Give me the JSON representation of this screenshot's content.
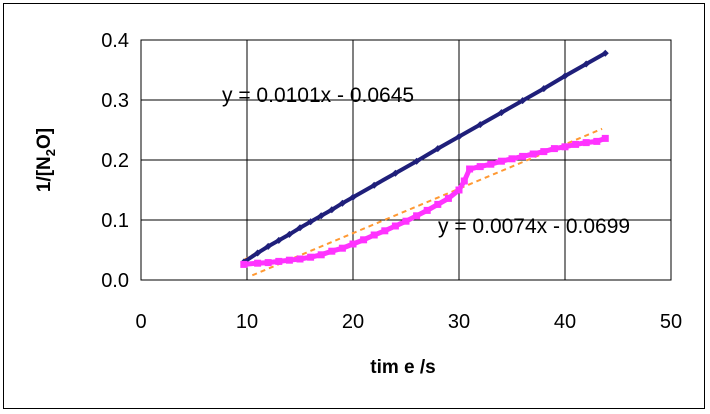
{
  "chart_data": {
    "type": "scatter",
    "xlabel": "tim e /s",
    "ylabel_prefix": "1/[N",
    "ylabel_sub": "2",
    "ylabel_suffix": "O]",
    "xlim": [
      0,
      50
    ],
    "ylim": [
      0.0,
      0.4
    ],
    "x_ticks": [
      "0",
      "10",
      "20",
      "30",
      "40",
      "50"
    ],
    "y_ticks": [
      "0.0",
      "0.1",
      "0.2",
      "0.3",
      "0.4"
    ],
    "grid": true,
    "legend": "none",
    "colors": {
      "series_1": "#1f1f7a",
      "series_2": "#ff33ff",
      "trendline": "#ff9933",
      "grid": "#000000"
    },
    "series": [
      {
        "values": [
          [
            9.7,
            0.03
          ],
          [
            11,
            0.045
          ],
          [
            12,
            0.056
          ],
          [
            13,
            0.066
          ],
          [
            14,
            0.076
          ],
          [
            15,
            0.087
          ],
          [
            16,
            0.097
          ],
          [
            17,
            0.107
          ],
          [
            18,
            0.117
          ],
          [
            19,
            0.128
          ],
          [
            20,
            0.138
          ],
          [
            22,
            0.158
          ],
          [
            24,
            0.178
          ],
          [
            26,
            0.198
          ],
          [
            28,
            0.219
          ],
          [
            30,
            0.239
          ],
          [
            32,
            0.259
          ],
          [
            34,
            0.279
          ],
          [
            36,
            0.299
          ],
          [
            38,
            0.319
          ],
          [
            40,
            0.34
          ],
          [
            42,
            0.36
          ],
          [
            43.8,
            0.378
          ]
        ]
      },
      {
        "values": [
          [
            9.7,
            0.026
          ],
          [
            11,
            0.028
          ],
          [
            12,
            0.029
          ],
          [
            13,
            0.031
          ],
          [
            14,
            0.033
          ],
          [
            15,
            0.035
          ],
          [
            16,
            0.038
          ],
          [
            17,
            0.042
          ],
          [
            18,
            0.048
          ],
          [
            19,
            0.053
          ],
          [
            20,
            0.06
          ],
          [
            21,
            0.067
          ],
          [
            22,
            0.075
          ],
          [
            23,
            0.082
          ],
          [
            24,
            0.09
          ],
          [
            25,
            0.098
          ],
          [
            26,
            0.107
          ],
          [
            27,
            0.116
          ],
          [
            28,
            0.126
          ],
          [
            29,
            0.136
          ],
          [
            30,
            0.15
          ],
          [
            30.5,
            0.165
          ],
          [
            31,
            0.185
          ],
          [
            32,
            0.189
          ],
          [
            33,
            0.193
          ],
          [
            34,
            0.198
          ],
          [
            35,
            0.202
          ],
          [
            36,
            0.206
          ],
          [
            37,
            0.21
          ],
          [
            38,
            0.214
          ],
          [
            39,
            0.219
          ],
          [
            40,
            0.222
          ],
          [
            41,
            0.226
          ],
          [
            42,
            0.229
          ],
          [
            43,
            0.231
          ],
          [
            43.8,
            0.236
          ]
        ]
      }
    ],
    "trendlines": [
      {
        "slope": 0.0101,
        "intercept": -0.0645,
        "x_range": [
          9.7,
          43.8
        ],
        "equation": "y = 0.0101x - 0.0645"
      },
      {
        "slope": 0.0074,
        "intercept": -0.0699,
        "x_range": [
          10.5,
          43.5
        ],
        "equation": "y = 0.0074x - 0.0699"
      }
    ]
  }
}
